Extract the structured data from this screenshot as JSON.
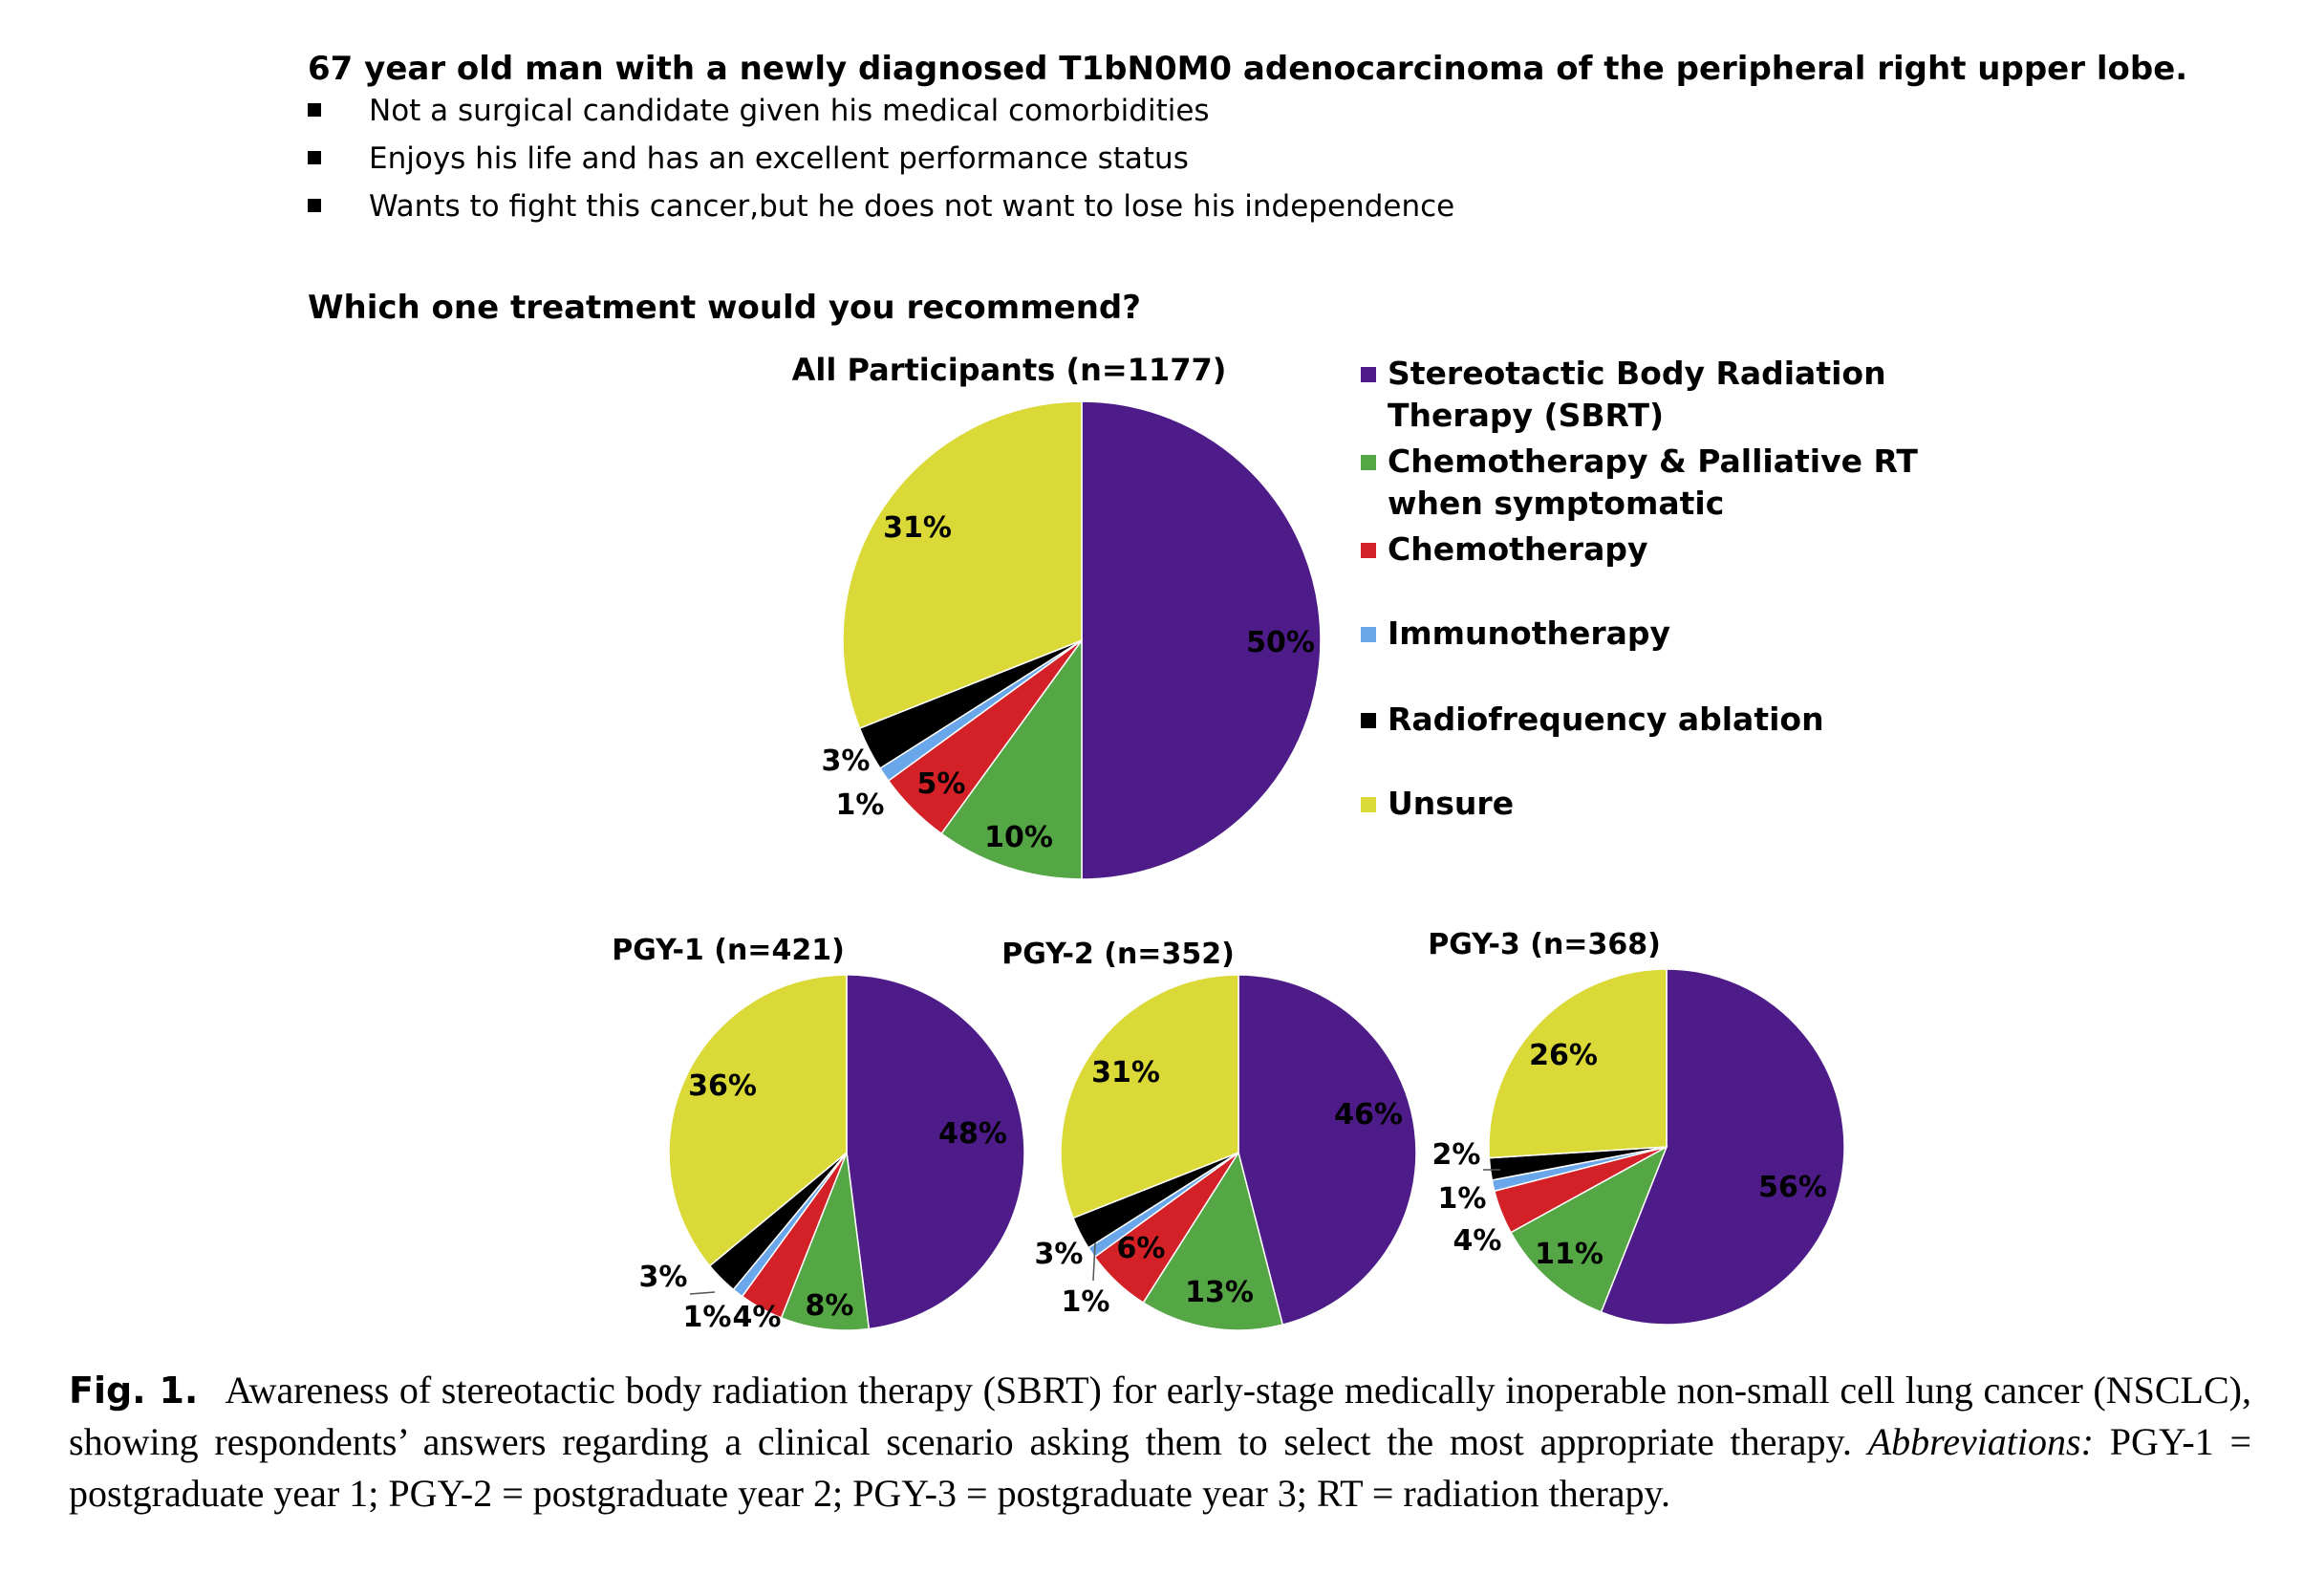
{
  "scenario": {
    "title": "67 year old man with a newly diagnosed T1bN0M0 adenocarcinoma of the peripheral right upper lobe.",
    "bullets": [
      "Not a surgical candidate given his medical comorbidities",
      "Enjoys his life and has an excellent performance status",
      "Wants to fight this cancer,but he does not want to lose his independence"
    ],
    "question": "Which one treatment would you recommend?"
  },
  "legend": {
    "items": [
      {
        "lines": [
          "Stereotactic Body Radiation",
          "Therapy (SBRT)"
        ],
        "color": "#4e1c88"
      },
      {
        "lines": [
          "Chemotherapy & Palliative RT",
          "when symptomatic"
        ],
        "color": "#55a645"
      },
      {
        "lines": [
          "Chemotherapy"
        ],
        "color": "#d42027"
      },
      {
        "lines": [
          "Immunotherapy"
        ],
        "color": "#6aa7ea"
      },
      {
        "lines": [
          "Radiofrequency ablation"
        ],
        "color": "#000000"
      },
      {
        "lines": [
          "Unsure"
        ],
        "color": "#dad938"
      }
    ]
  },
  "chart_data": [
    {
      "type": "pie",
      "title": "All Participants (n=1177)",
      "categories": [
        "Stereotactic Body Radiation Therapy (SBRT)",
        "Chemotherapy & Palliative RT when symptomatic",
        "Chemotherapy",
        "Immunotherapy",
        "Radiofrequency ablation",
        "Unsure"
      ],
      "values": [
        50,
        10,
        5,
        1,
        3,
        31
      ],
      "labels": [
        "50%",
        "10%",
        "5%",
        "1%",
        "3%",
        "31%"
      ]
    },
    {
      "type": "pie",
      "title": "PGY-1 (n=421)",
      "categories": [
        "Stereotactic Body Radiation Therapy (SBRT)",
        "Chemotherapy & Palliative RT when symptomatic",
        "Chemotherapy",
        "Immunotherapy",
        "Radiofrequency ablation",
        "Unsure"
      ],
      "values": [
        48,
        8,
        4,
        1,
        3,
        36
      ],
      "labels": [
        "48%",
        "8%",
        "4%",
        "1%",
        "3%",
        "36%"
      ]
    },
    {
      "type": "pie",
      "title": "PGY-2 (n=352)",
      "categories": [
        "Stereotactic Body Radiation Therapy (SBRT)",
        "Chemotherapy & Palliative RT when symptomatic",
        "Chemotherapy",
        "Immunotherapy",
        "Radiofrequency ablation",
        "Unsure"
      ],
      "values": [
        46,
        13,
        6,
        1,
        3,
        31
      ],
      "labels": [
        "46%",
        "13%",
        "6%",
        "1%",
        "3%",
        "31%"
      ]
    },
    {
      "type": "pie",
      "title": "PGY-3 (n=368)",
      "categories": [
        "Stereotactic Body Radiation Therapy (SBRT)",
        "Chemotherapy & Palliative RT when symptomatic",
        "Chemotherapy",
        "Immunotherapy",
        "Radiofrequency ablation",
        "Unsure"
      ],
      "values": [
        56,
        11,
        4,
        1,
        2,
        26
      ],
      "labels": [
        "56%",
        "11%",
        "4%",
        "1%",
        "2%",
        "26%"
      ]
    }
  ],
  "caption": {
    "label": "Fig. 1.",
    "text_a": "Awareness of stereotactic body radiation therapy (SBRT) for early-stage medically inoperable non-small cell lung cancer (NSCLC), showing respondents’ answers regarding a clinical scenario asking them to select the most appropriate therapy. ",
    "abbrev_label": "Abbreviations:",
    "text_b": " PGY-1 = postgraduate year 1; PGY-2 = postgraduate year 2; PGY-3 = postgraduate year 3; RT = radiation therapy."
  }
}
